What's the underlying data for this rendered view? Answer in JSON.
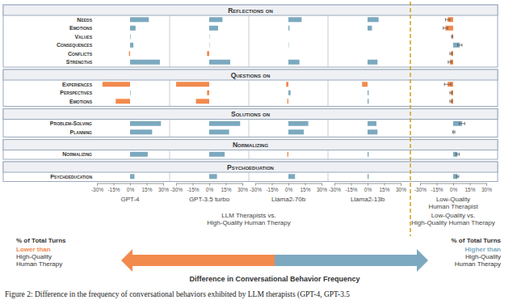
{
  "chart_data": {
    "type": "bar",
    "orientation": "horizontal",
    "groups": [
      {
        "title": "Reflections on",
        "categories": [
          "Needs",
          "Emotions",
          "Values",
          "Consequences",
          "Conflicts",
          "Strengths"
        ]
      },
      {
        "title": "Questions on",
        "categories": [
          "Experiences",
          "Perspectives",
          "Emotions"
        ]
      },
      {
        "title": "Solutions on",
        "categories": [
          "Problem-Solving",
          "Planning"
        ]
      },
      {
        "title": "Normalizing",
        "categories": [
          "Normalizing"
        ]
      },
      {
        "title": "Psychoeduation",
        "categories": [
          "Psychoeducation"
        ]
      }
    ],
    "series": [
      {
        "name": "GPT-4",
        "values": [
          17,
          5,
          0.5,
          3,
          -1,
          27,
          -25,
          0.5,
          -13,
          28,
          20,
          16,
          4
        ]
      },
      {
        "name": "GPT-3.5 turbo",
        "values": [
          12,
          8,
          0.3,
          0.3,
          -2,
          19,
          -30,
          -2,
          -12,
          28,
          18,
          14,
          7
        ]
      },
      {
        "name": "Llama2-70b",
        "values": [
          12,
          1,
          0,
          0.3,
          0,
          10,
          -2,
          2,
          -1,
          18,
          14,
          -1,
          6
        ]
      },
      {
        "name": "Llama2-13b",
        "values": [
          10,
          4,
          0,
          0,
          0,
          9,
          -5,
          1,
          1,
          8,
          9,
          1,
          1
        ]
      },
      {
        "name": "Low-Quality Human Therapist",
        "values": [
          -5,
          -7,
          -1,
          6,
          -2,
          -3,
          -5,
          -2,
          -2,
          8,
          0.5,
          4,
          4
        ],
        "errors": [
          2,
          2,
          0.5,
          2,
          1,
          1.5,
          3,
          1,
          1,
          2.5,
          1,
          1.5,
          1
        ]
      }
    ],
    "colors": [
      "#f28a4e",
      "#7ca9bf"
    ],
    "xlim": [
      -30,
      30
    ],
    "xticks": [
      {
        "value": -30,
        "label": "-30%"
      },
      {
        "value": -15,
        "label": "-15%"
      },
      {
        "value": 0,
        "label": "0%"
      },
      {
        "value": 15,
        "label": "15%"
      },
      {
        "value": 30,
        "label": "30%"
      }
    ],
    "panel_groups": [
      "LLM Therapists vs. High-Quality Human Therapy",
      "Low-Quality vs. High-Quality Human Therapy"
    ],
    "legend_text": {
      "title": "% of Total Turns",
      "lower": "Lower than High-Quality Human Therapy",
      "higher": "Higher than High-Quality Human Therapy",
      "axis_title": "Difference in Conversational Behavior Frequency"
    },
    "caption": "Figure 2: Difference in the frequency of conversational behaviors exhibited by LLM therapists (GPT-4, GPT-3.5"
  }
}
